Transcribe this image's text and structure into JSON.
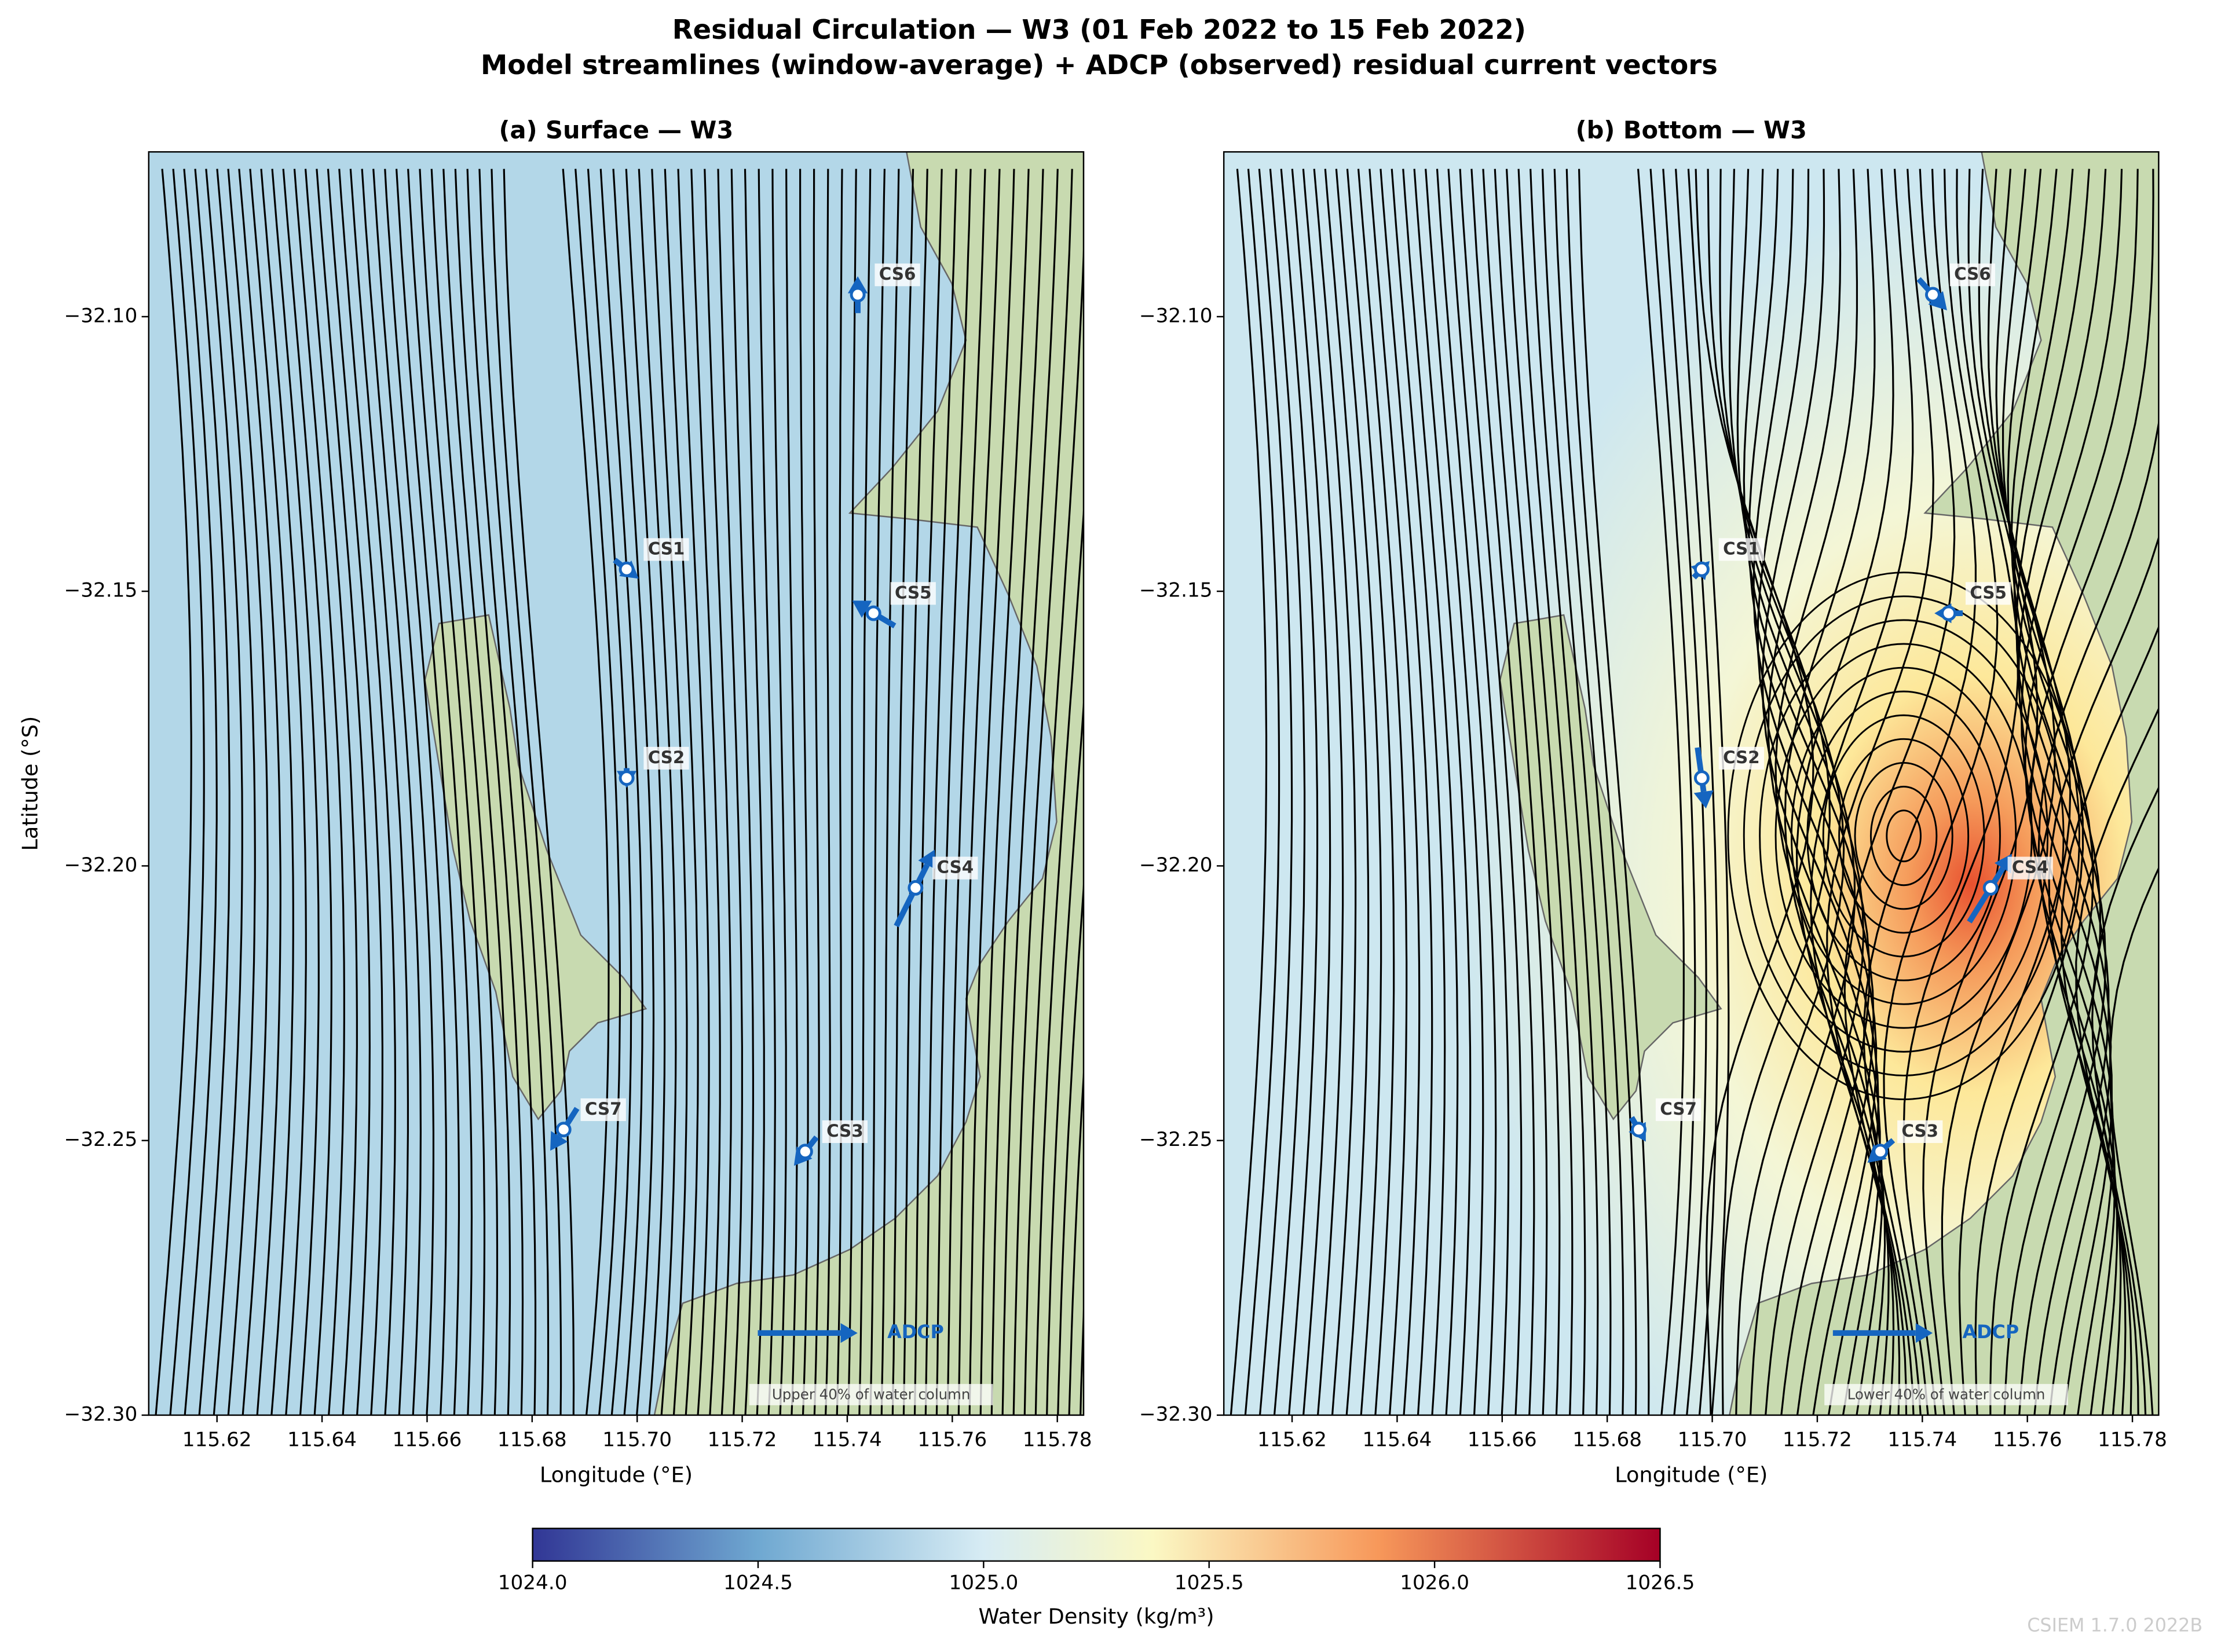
{
  "title": "Residual Circulation — W3  (01 Feb 2022 to 15 Feb 2022)",
  "subtitle": "Model streamlines (window-average) + ADCP (observed) residual current vectors",
  "chart_data": [
    {
      "type": "map",
      "title": "(a) Surface — W3",
      "xlabel": "Longitude (°E)",
      "ylabel": "Latitude (°S)",
      "xlim": [
        115.607,
        115.785
      ],
      "ylim": [
        -32.3,
        -32.07
      ],
      "xticks": [
        115.62,
        115.64,
        115.66,
        115.68,
        {
          "value": 115.7,
          "label": "115.70"
        },
        115.72,
        115.74,
        115.76,
        115.78
      ],
      "yticks": [
        {
          "value": -32.3,
          "label": "−32.30"
        },
        {
          "value": -32.25,
          "label": "−32.25"
        },
        {
          "value": -32.2,
          "label": "−32.20"
        },
        {
          "value": -32.15,
          "label": "−32.15"
        },
        {
          "value": -32.1,
          "label": "−32.10"
        }
      ],
      "annotation": "Upper 40% of water column",
      "key": {
        "label": "ADCP",
        "dlon": 0.019
      },
      "stations": [
        {
          "name": "CS6",
          "lon": 115.742,
          "lat": -32.096,
          "dlon": 0,
          "dlat": 0.0067
        },
        {
          "name": "CS1",
          "lon": 115.698,
          "lat": -32.146,
          "dlon": 0.0046,
          "dlat": -0.0034
        },
        {
          "name": "CS5",
          "lon": 115.745,
          "lat": -32.154,
          "dlon": -0.0081,
          "dlat": 0.0046
        },
        {
          "name": "CS2",
          "lon": 115.698,
          "lat": -32.184,
          "dlon": 0,
          "dlat": -0.0036
        },
        {
          "name": "CS4",
          "lon": 115.753,
          "lat": -32.204,
          "dlon": 0.0073,
          "dlat": 0.0139
        },
        {
          "name": "CS7",
          "lon": 115.686,
          "lat": -32.248,
          "dlon": -0.0051,
          "dlat": -0.0077
        },
        {
          "name": "CS3",
          "lon": 115.732,
          "lat": -32.252,
          "dlon": -0.0043,
          "dlat": -0.0052
        }
      ]
    },
    {
      "type": "map",
      "title": "(b) Bottom — W3",
      "xlabel": "Longitude (°E)",
      "xlim": [
        115.607,
        115.785
      ],
      "ylim": [
        -32.3,
        -32.07
      ],
      "xticks": [
        115.62,
        115.64,
        115.66,
        115.68,
        {
          "value": 115.7,
          "label": "115.70"
        },
        115.72,
        115.74,
        115.76,
        115.78
      ],
      "yticks": [
        {
          "value": -32.3,
          "label": "−32.30"
        },
        {
          "value": -32.25,
          "label": "−32.25"
        },
        {
          "value": -32.2,
          "label": "−32.20"
        },
        {
          "value": -32.15,
          "label": "−32.15"
        },
        {
          "value": -32.1,
          "label": "−32.10"
        }
      ],
      "annotation": "Lower 40% of water column",
      "key": {
        "label": "ADCP",
        "dlon": 0.019
      },
      "stations": [
        {
          "name": "CS6",
          "lon": 115.742,
          "lat": -32.096,
          "dlon": 0.0054,
          "dlat": -0.0057
        },
        {
          "name": "CS1",
          "lon": 115.698,
          "lat": -32.146,
          "dlon": 0.003,
          "dlat": 0.003
        },
        {
          "name": "CS5",
          "lon": 115.745,
          "lat": -32.154,
          "dlon": -0.0054,
          "dlat": 0
        },
        {
          "name": "CS2",
          "lon": 115.698,
          "lat": -32.184,
          "dlon": 0.0016,
          "dlat": -0.0111
        },
        {
          "name": "CS4",
          "lon": 115.753,
          "lat": -32.204,
          "dlon": 0.0081,
          "dlat": 0.0124
        },
        {
          "name": "CS7",
          "lon": 115.686,
          "lat": -32.248,
          "dlon": 0.0027,
          "dlat": -0.0044
        },
        {
          "name": "CS3",
          "lon": 115.732,
          "lat": -32.252,
          "dlon": -0.0049,
          "dlat": -0.0041
        }
      ]
    }
  ],
  "colorbar": {
    "label": "Water Density (kg/m³)",
    "lim": [
      1024,
      1026.5
    ],
    "ticks": [
      {
        "value": 1024,
        "label": "1024.0"
      },
      {
        "value": 1024.5,
        "label": "1024.5"
      },
      {
        "value": 1025,
        "label": "1025.0"
      },
      {
        "value": 1025.5,
        "label": "1025.5"
      },
      {
        "value": 1026,
        "label": "1026.0"
      },
      {
        "value": 1026.5,
        "label": "1026.5"
      }
    ]
  },
  "watermark": "CSIEM 1.7.0 2022B"
}
